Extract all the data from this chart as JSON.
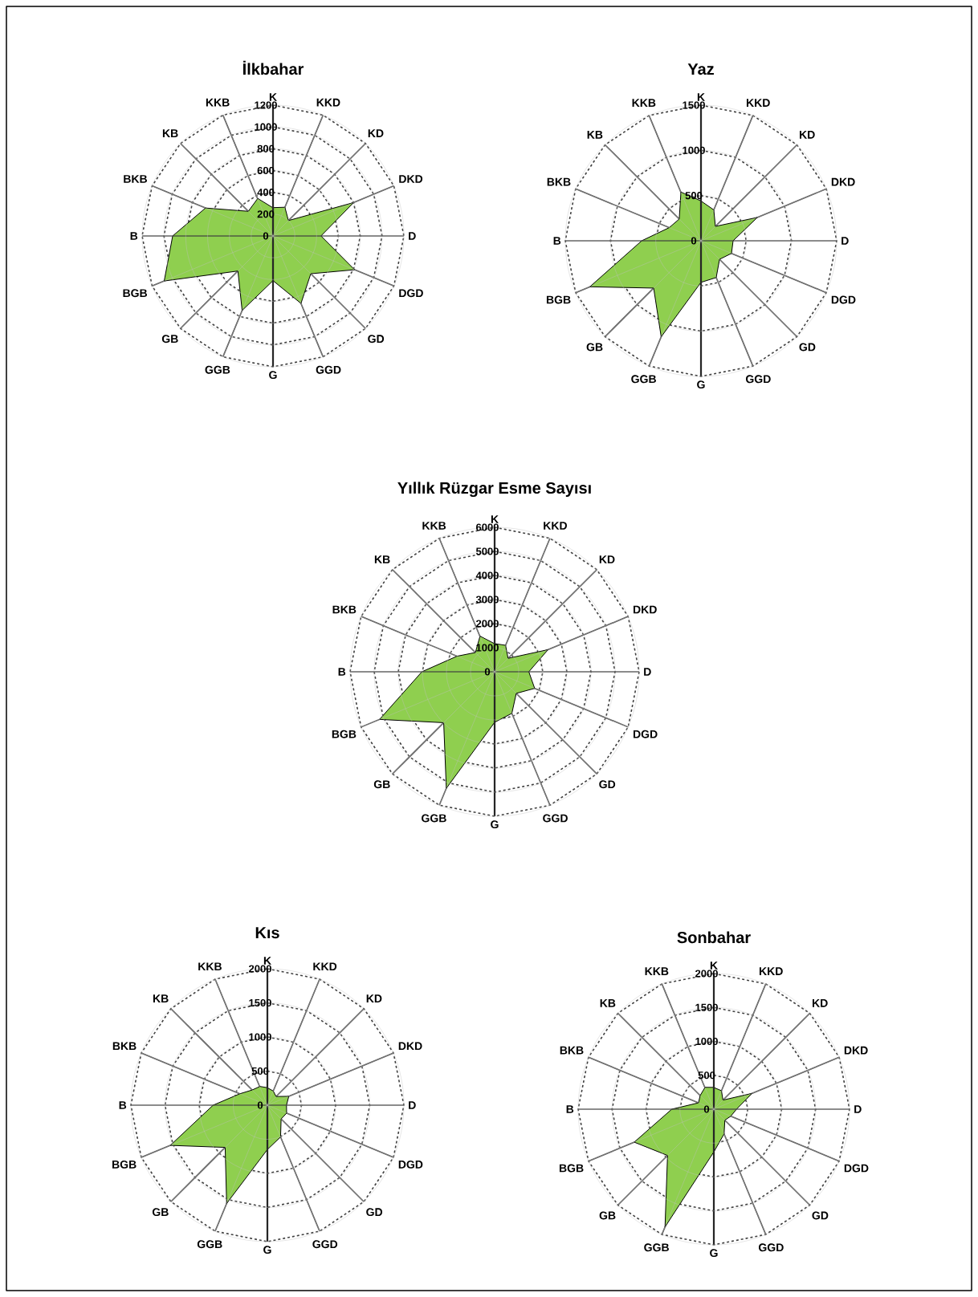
{
  "chart_data": [
    {
      "type": "radar",
      "title": "İlkbahar",
      "categories": [
        "K",
        "KKD",
        "KD",
        "DKD",
        "D",
        "DGD",
        "GD",
        "GGD",
        "G",
        "GGB",
        "GB",
        "BGB",
        "B",
        "BKB",
        "KB",
        "KKB"
      ],
      "ylim": [
        0,
        1200
      ],
      "yticks": [
        0,
        200,
        400,
        600,
        800,
        1000,
        1200
      ],
      "grid": true,
      "series": [
        {
          "color": "#8fcf4f",
          "values": [
            260,
            285,
            200,
            800,
            440,
            810,
            490,
            670,
            410,
            740,
            455,
            1080,
            920,
            670,
            320,
            370
          ]
        }
      ]
    },
    {
      "type": "radar",
      "title": "Yaz",
      "categories": [
        "K",
        "KKD",
        "KD",
        "DKD",
        "D",
        "DGD",
        "GD",
        "GGD",
        "G",
        "GGB",
        "GB",
        "BGB",
        "B",
        "BKB",
        "KB",
        "KKB"
      ],
      "ylim": [
        0,
        1500
      ],
      "yticks": [
        0,
        500,
        1000,
        1500
      ],
      "grid": true,
      "series": [
        {
          "color": "#8fcf4f",
          "values": [
            440,
            370,
            225,
            675,
            355,
            365,
            290,
            440,
            460,
            1150,
            740,
            1330,
            655,
            380,
            340,
            580
          ]
        }
      ]
    },
    {
      "type": "radar",
      "title": "Yıllık Rüzgar Esme Sayısı",
      "categories": [
        "K",
        "KKD",
        "KD",
        "DKD",
        "D",
        "DGD",
        "GD",
        "GGD",
        "G",
        "GGB",
        "GB",
        "BGB",
        "B",
        "BKB",
        "KB",
        "KKB"
      ],
      "ylim": [
        0,
        6000
      ],
      "yticks": [
        0,
        1000,
        2000,
        3000,
        4000,
        5000,
        6000
      ],
      "grid": true,
      "series": [
        {
          "color": "#8fcf4f",
          "values": [
            1170,
            1190,
            790,
            2400,
            1420,
            1800,
            1270,
            1870,
            2100,
            5240,
            2990,
            5170,
            3020,
            1690,
            1130,
            1590
          ]
        }
      ]
    },
    {
      "type": "radar",
      "title": "Kıs",
      "categories": [
        "K",
        "KKD",
        "KD",
        "DKD",
        "D",
        "DGD",
        "GD",
        "GGD",
        "G",
        "GGB",
        "GB",
        "BGB",
        "B",
        "BKB",
        "KB",
        "KKB"
      ],
      "ylim": [
        0,
        2000
      ],
      "yticks": [
        0,
        500,
        1000,
        1500,
        2000
      ],
      "grid": true,
      "series": [
        {
          "color": "#8fcf4f",
          "values": [
            255,
            225,
            180,
            340,
            280,
            305,
            285,
            505,
            650,
            1560,
            875,
            1540,
            795,
            437,
            315,
            295
          ]
        }
      ]
    },
    {
      "type": "radar",
      "title": "Sonbahar",
      "categories": [
        "K",
        "KKD",
        "KD",
        "DKD",
        "D",
        "DGD",
        "GD",
        "GGD",
        "G",
        "GGB",
        "GB",
        "BGB",
        "B",
        "BKB",
        "KB",
        "KKB"
      ],
      "ylim": [
        0,
        2000
      ],
      "yticks": [
        0,
        500,
        1000,
        1500,
        2000
      ],
      "grid": true,
      "series": [
        {
          "color": "#8fcf4f",
          "values": [
            320,
            295,
            190,
            610,
            335,
            270,
            230,
            395,
            630,
            1880,
            965,
            1270,
            620,
            245,
            285,
            345
          ]
        }
      ]
    }
  ]
}
